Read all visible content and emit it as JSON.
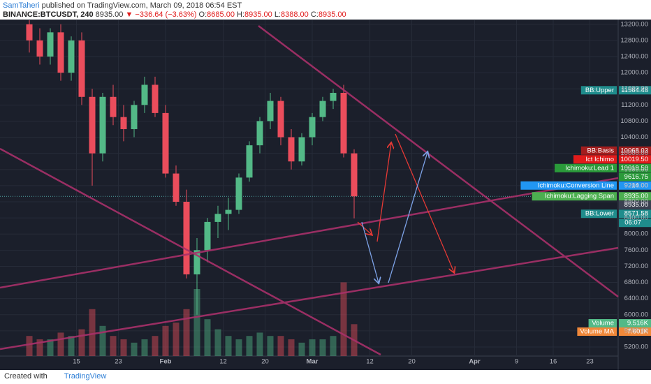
{
  "header": {
    "author": "SamTaheri",
    "published": " published on TradingView.com, March 09, 2018 06:54 EST",
    "symbol": "BINANCE:BTCUSDT, 240",
    "last": "8935.00",
    "change": "▼ −336.64 (−3.63%)",
    "ohlc": [
      {
        "key": "O:",
        "value": "8685.00"
      },
      {
        "key": "H:",
        "value": "8935.00"
      },
      {
        "key": "L:",
        "value": "8388.00"
      },
      {
        "key": "C:",
        "value": "8935.00"
      }
    ]
  },
  "chart_data": {
    "type": "candlestick",
    "up_color": "#53b987",
    "down_color": "#eb4d5c",
    "x": [
      5,
      7,
      9,
      11,
      13,
      15,
      17,
      19,
      21,
      23,
      25,
      27,
      29,
      31,
      33,
      35,
      37,
      39,
      41,
      43,
      45,
      47,
      49,
      51,
      53,
      55,
      57,
      59,
      61,
      63,
      65,
      67
    ],
    "open": [
      13200,
      12800,
      12400,
      13000,
      12000,
      12800,
      11400,
      10000,
      11400,
      10900,
      10600,
      11200,
      11700,
      11000,
      9500,
      8800,
      7000,
      7600,
      8300,
      8500,
      8600,
      9400,
      10200,
      10800,
      11300,
      10400,
      9800,
      10400,
      10900,
      11300,
      11500,
      10000
    ],
    "high": [
      13300,
      13100,
      13100,
      13200,
      12900,
      13000,
      11600,
      11500,
      11700,
      11200,
      11300,
      11900,
      11900,
      11200,
      9700,
      9100,
      7900,
      8400,
      8700,
      8900,
      9500,
      10300,
      10900,
      11500,
      11400,
      10600,
      10500,
      11000,
      11400,
      11600,
      11700,
      10100
    ],
    "low": [
      12500,
      12200,
      12200,
      11800,
      11800,
      11200,
      9200,
      9800,
      10700,
      10300,
      10400,
      11000,
      10900,
      9400,
      8700,
      6900,
      6000,
      7300,
      7900,
      8100,
      8500,
      9300,
      10000,
      10600,
      10200,
      9600,
      9700,
      10200,
      10800,
      11100,
      9900,
      8388
    ],
    "close": [
      12800,
      12400,
      13000,
      12000,
      12800,
      11400,
      10000,
      11400,
      10900,
      10600,
      11200,
      11700,
      11000,
      9500,
      8800,
      7000,
      7600,
      8300,
      8500,
      8600,
      9400,
      10200,
      10800,
      11300,
      10400,
      9800,
      10400,
      10900,
      11300,
      11500,
      10000,
      8935
    ],
    "volume": [
      6,
      5,
      5,
      7,
      6,
      8,
      14,
      9,
      6,
      5,
      4,
      5,
      6,
      9,
      10,
      14,
      20,
      11,
      8,
      6,
      5,
      6,
      7,
      6,
      6,
      5,
      4,
      5,
      5,
      6,
      22,
      9.516
    ],
    "xlim": [
      -0.6,
      117.4
    ],
    "xticks": [
      {
        "value": 14,
        "label": "15"
      },
      {
        "value": 22,
        "label": "23"
      },
      {
        "value": 31,
        "label": "Feb"
      },
      {
        "value": 42,
        "label": "12"
      },
      {
        "value": 50,
        "label": "20"
      },
      {
        "value": 59,
        "label": "Mar"
      },
      {
        "value": 70,
        "label": "12"
      },
      {
        "value": 78,
        "label": "20"
      },
      {
        "value": 90,
        "label": "Apr"
      },
      {
        "value": 98,
        "label": "9"
      },
      {
        "value": 105,
        "label": "16"
      },
      {
        "value": 112,
        "label": "23"
      }
    ],
    "ylim": [
      4975,
      13300
    ],
    "yticks": [
      {
        "value": 13200,
        "label": "13200.00"
      },
      {
        "value": 12800,
        "label": "12800.00"
      },
      {
        "value": 12400,
        "label": "12400.00"
      },
      {
        "value": 12000,
        "label": "12000.00"
      },
      {
        "value": 11600,
        "label": "11600.00"
      },
      {
        "value": 11200,
        "label": "11200.00"
      },
      {
        "value": 10800,
        "label": "10800.00"
      },
      {
        "value": 10400,
        "label": "10400.00"
      },
      {
        "value": 10000,
        "label": "10000.00"
      },
      {
        "value": 9600,
        "label": "9600.00"
      },
      {
        "value": 9200,
        "label": "9200.00"
      },
      {
        "value": 8800,
        "label": "8800.00"
      },
      {
        "value": 8400,
        "label": "8400.00"
      },
      {
        "value": 8000,
        "label": "8000.00"
      },
      {
        "value": 7600,
        "label": "7600.00"
      },
      {
        "value": 7200,
        "label": "7200.00"
      },
      {
        "value": 6800,
        "label": "6800.00"
      },
      {
        "value": 6400,
        "label": "6400.00"
      },
      {
        "value": 6000,
        "label": "6000.00"
      },
      {
        "value": 5600,
        "label": "5600.00"
      },
      {
        "value": 5200,
        "label": "5200.00"
      }
    ],
    "last_price": 8935,
    "countdown": "06:07",
    "price_tags": [
      {
        "name": "BB:Upper",
        "value": 11564.48,
        "color": "#1f8c8c"
      },
      {
        "name": "BB:Basis",
        "value": 10068.03,
        "color": "#a31d1d"
      },
      {
        "name": "Ict Ichimo",
        "value": 10019.5,
        "label": "10019.50",
        "color": "#e01b1b"
      },
      {
        "name": "Ichimoku:Lead 1",
        "value": 10019.5,
        "label": "10019.50",
        "color": "#2a9a3a"
      },
      {
        "value": 9616.75,
        "color": "#2a9a3a"
      },
      {
        "name": "Ichimoku:Conversion Line",
        "value": 9214,
        "label": "9214.00",
        "color": "#2196f3"
      },
      {
        "name": "Ichimoku:Lagging Span",
        "value": 8935,
        "label": "8935.00",
        "color": "#4caf50"
      },
      {
        "value": 8935,
        "label": "8935.00",
        "color": "#3a4050"
      },
      {
        "name": "BB:Lower",
        "value": 8571.58,
        "color": "#1f8c8c"
      }
    ],
    "volume_tags": [
      {
        "name": "Volume",
        "value": 9.516,
        "label": "9.516K",
        "color": "#53b987"
      },
      {
        "name": "Volume MA",
        "value": 7.601,
        "label": "7.601K",
        "color": "#f0883a"
      }
    ]
  },
  "footer": {
    "created": "Created with",
    "brand": "TradingView"
  }
}
